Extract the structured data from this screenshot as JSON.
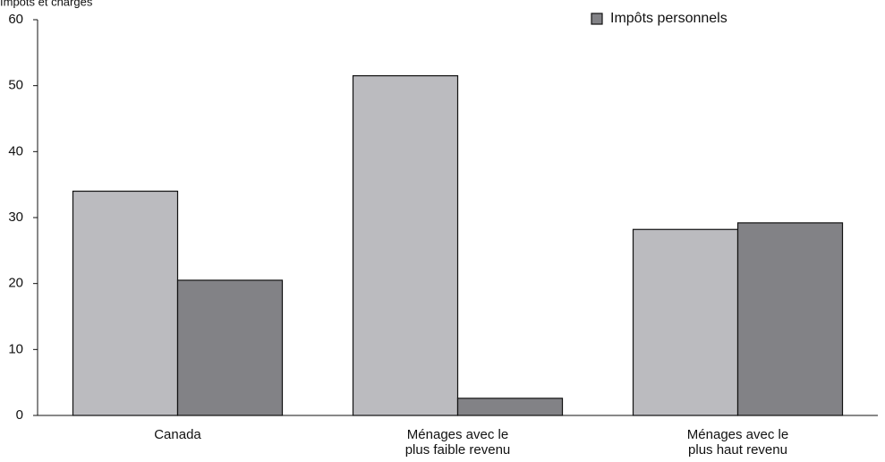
{
  "chart_data": {
    "type": "bar",
    "top_label": "Impôts et charges",
    "categories": [
      [
        "Canada"
      ],
      [
        "Ménages avec le",
        "plus faible revenu"
      ],
      [
        "Ménages avec le",
        "plus haut revenu"
      ]
    ],
    "series": [
      {
        "values": [
          34,
          51.5,
          28.2
        ],
        "color": "#bbbbbf"
      },
      {
        "name": "Impôts personnels",
        "values": [
          20.5,
          2.6,
          29.2
        ],
        "color": "#828286"
      }
    ],
    "ylim": [
      0,
      60
    ],
    "yticks": [
      0,
      10,
      20,
      30,
      40,
      50,
      60
    ],
    "legend": {
      "placement": "top-right",
      "entries": [
        "Impôts personnels"
      ]
    },
    "grid": false
  }
}
